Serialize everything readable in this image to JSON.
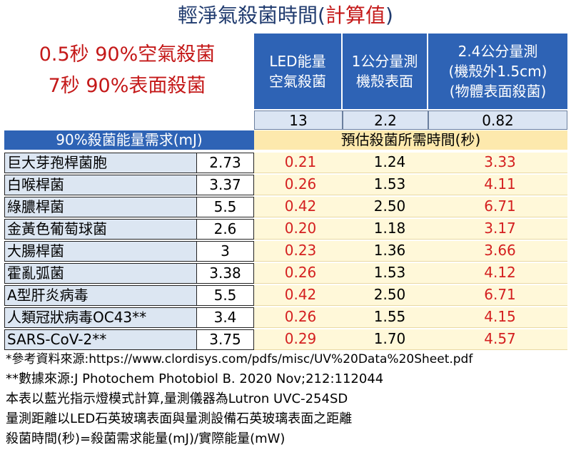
{
  "title": {
    "main": "輕淨氣殺菌時間(",
    "highlight": "計算值",
    "end": ")"
  },
  "claims": [
    "0.5秒  90%空氣殺菌",
    "7秒   90%表面殺菌"
  ],
  "columns": [
    {
      "label_lines": [
        "LED能量",
        "空氣殺菌"
      ],
      "power": "13"
    },
    {
      "label_lines": [
        "1公分量測",
        "機殼表面"
      ],
      "power": "2.2"
    },
    {
      "label_lines": [
        "2.4公分量測",
        "(機殼外1.5cm)",
        "(物體表面殺菌)"
      ],
      "power": "0.82"
    }
  ],
  "requirement_header": "90%殺菌能量需求(mJ)",
  "time_header": "預估殺菌所需時間(秒)",
  "rows": [
    {
      "name": "巨大芽孢桿菌胞",
      "need": "2.73",
      "t1": "0.21",
      "t2": "1.24",
      "t3": "3.33"
    },
    {
      "name": "白喉桿菌",
      "need": "3.37",
      "t1": "0.26",
      "t2": "1.53",
      "t3": "4.11"
    },
    {
      "name": "綠膿桿菌",
      "need": "5.5",
      "t1": "0.42",
      "t2": "2.50",
      "t3": "6.71"
    },
    {
      "name": "金黃色葡萄球菌",
      "need": "2.6",
      "t1": "0.20",
      "t2": "1.18",
      "t3": "3.17"
    },
    {
      "name": "大腸桿菌",
      "need": "3",
      "t1": "0.23",
      "t2": "1.36",
      "t3": "3.66"
    },
    {
      "name": "霍亂弧菌",
      "need": "3.38",
      "t1": "0.26",
      "t2": "1.53",
      "t3": "4.12"
    },
    {
      "name": "A型肝炎病毒",
      "need": "5.5",
      "t1": "0.42",
      "t2": "2.50",
      "t3": "6.71"
    },
    {
      "name": "人類冠狀病毒OC43**",
      "need": "3.4",
      "t1": "0.26",
      "t2": "1.55",
      "t3": "4.15"
    },
    {
      "name": "SARS-CoV-2**",
      "need": "3.75",
      "t1": "0.29",
      "t2": "1.70",
      "t3": "4.57"
    }
  ],
  "notes": [
    "*參考資料來源:https://www.clordisys.com/pdfs/misc/UV%20Data%20Sheet.pdf",
    "**數據來源:J Photochem Photobiol B. 2020 Nov;212:112044",
    "本表以藍光指示燈模式計算,量測儀器為Lutron UVC-254SD",
    "量測距離以LED石英玻璃表面與量測設備石英玻璃表面之距離",
    "殺菌時間(秒)=殺菌需求能量(mJ)/實際能量(mW)"
  ]
}
